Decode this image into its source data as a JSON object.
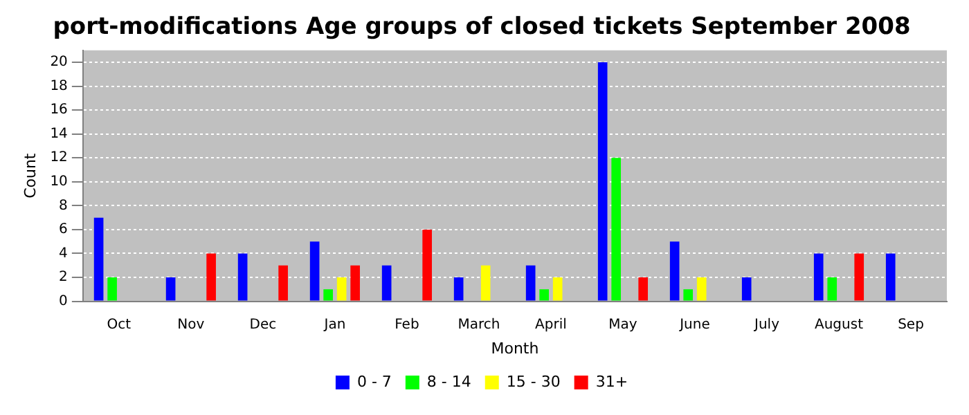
{
  "chart_data": {
    "type": "bar",
    "title": "port-modifications Age groups of closed tickets September 2008",
    "xlabel": "Month",
    "ylabel": "Count",
    "categories": [
      "Oct",
      "Nov",
      "Dec",
      "Jan",
      "Feb",
      "March",
      "April",
      "May",
      "June",
      "July",
      "August",
      "Sep"
    ],
    "series": [
      {
        "name": "0 - 7",
        "color": "#0000ff",
        "values": [
          7,
          2,
          4,
          5,
          3,
          2,
          3,
          20,
          5,
          2,
          4,
          4
        ]
      },
      {
        "name": "8 - 14",
        "color": "#00ff00",
        "values": [
          2,
          0,
          0,
          1,
          0,
          0,
          1,
          12,
          1,
          0,
          2,
          0
        ]
      },
      {
        "name": "15 - 30",
        "color": "#ffff00",
        "values": [
          0,
          0,
          0,
          2,
          0,
          3,
          2,
          0,
          2,
          0,
          0,
          0
        ]
      },
      {
        "name": "31+",
        "color": "#ff0000",
        "values": [
          0,
          4,
          3,
          3,
          6,
          0,
          0,
          2,
          0,
          0,
          4,
          0
        ]
      }
    ],
    "ylim": [
      0,
      21
    ],
    "yticks": [
      0,
      2,
      4,
      6,
      8,
      10,
      12,
      14,
      16,
      18,
      20
    ],
    "grid": "y",
    "legend": "bottom"
  }
}
